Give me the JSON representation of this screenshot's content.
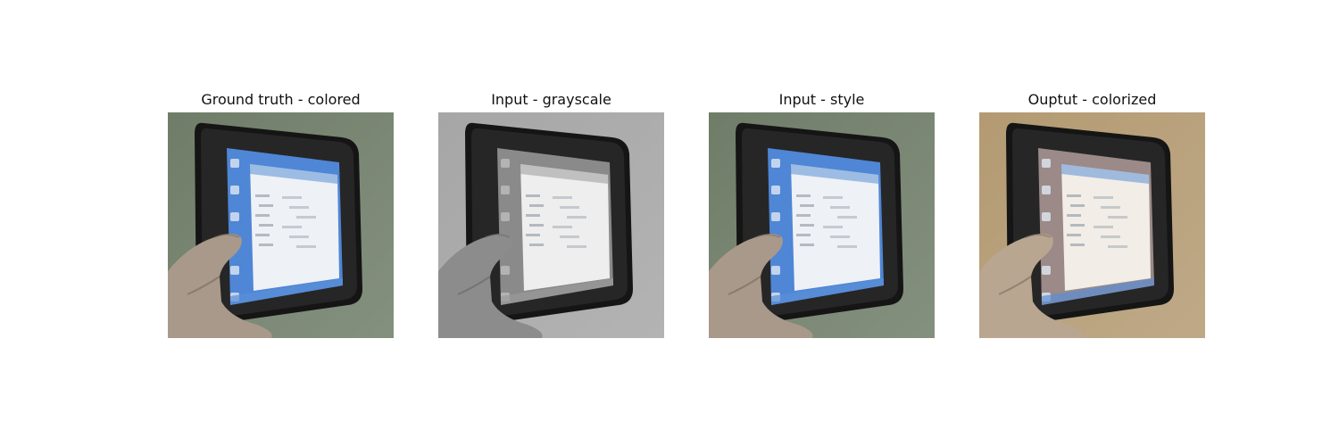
{
  "figure": {
    "panels": [
      {
        "title": "Ground truth - colored",
        "variant": "color-green",
        "bg": "#6f7d68",
        "screen": "#4f86d6",
        "window": "#eef1f6"
      },
      {
        "title": "Input - grayscale",
        "variant": "grayscale",
        "bg": "#a6a6a6",
        "screen": "#8a8a8a",
        "window": "#eeeeee"
      },
      {
        "title": "Input - style",
        "variant": "color-green",
        "bg": "#6f7d68",
        "screen": "#4f86d6",
        "window": "#eef1f6"
      },
      {
        "title": "Ouptut - colorized",
        "variant": "color-tan",
        "bg": "#b39a72",
        "screen": "#9b8a88",
        "window": "#f2ede6"
      }
    ]
  }
}
